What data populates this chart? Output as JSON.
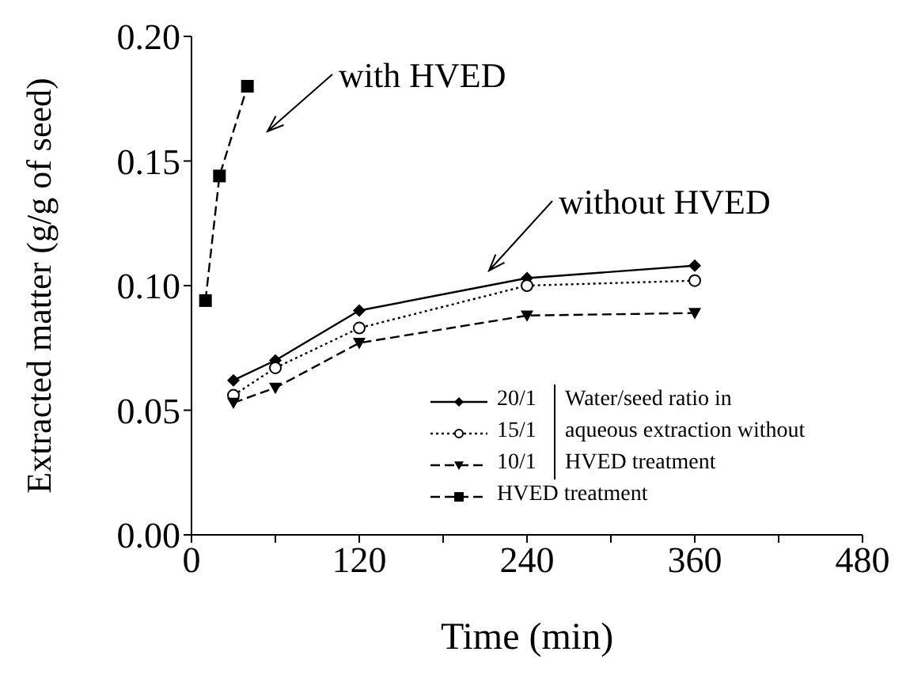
{
  "chart_data": {
    "type": "line",
    "xlabel": "Time (min)",
    "ylabel": "Extracted matter (g/g of seed)",
    "legend_title": "Water/seed ratio in aqueous extraction without HVED treatment",
    "legend": "bottom right",
    "xlim": [
      0,
      480
    ],
    "ylim": [
      0,
      0.2
    ],
    "xticks": [
      0,
      {
        "value": 60,
        "label": null
      },
      120,
      {
        "value": 180,
        "label": null
      },
      240,
      {
        "value": 300,
        "label": null
      },
      360,
      {
        "value": 420,
        "label": null
      },
      480
    ],
    "yticks": [
      {
        "value": 0,
        "label": "0.00"
      },
      {
        "value": 0.05,
        "label": "0.05"
      },
      {
        "value": 0.1,
        "label": "0.10"
      },
      {
        "value": 0.15,
        "label": "0.15"
      },
      {
        "value": 0.2,
        "label": "0.20"
      }
    ],
    "series": [
      {
        "name": "20/1",
        "color": "#000000",
        "marker": "diamond",
        "line_style": "solid",
        "x": [
          30,
          60,
          120,
          240,
          360
        ],
        "values": [
          0.062,
          0.07,
          0.09,
          0.103,
          0.108
        ]
      },
      {
        "name": "15/1",
        "color": "#000000",
        "marker": "circle",
        "line_style": "dotted",
        "x": [
          30,
          60,
          120,
          240,
          360
        ],
        "values": [
          0.056,
          0.067,
          0.083,
          0.1,
          0.102
        ]
      },
      {
        "name": "10/1",
        "color": "#000000",
        "marker": "triangle",
        "line_style": "dashed",
        "x": [
          30,
          60,
          120,
          240,
          360
        ],
        "values": [
          0.053,
          0.059,
          0.077,
          0.088,
          0.089
        ]
      },
      {
        "name": "HVED treatment",
        "color": "#000000",
        "marker": "square",
        "line_style": "dashed",
        "x": [
          10,
          20,
          40
        ],
        "values": [
          0.094,
          0.144,
          0.18
        ]
      }
    ],
    "annotations": [
      "with HVED",
      "without HVED"
    ]
  }
}
